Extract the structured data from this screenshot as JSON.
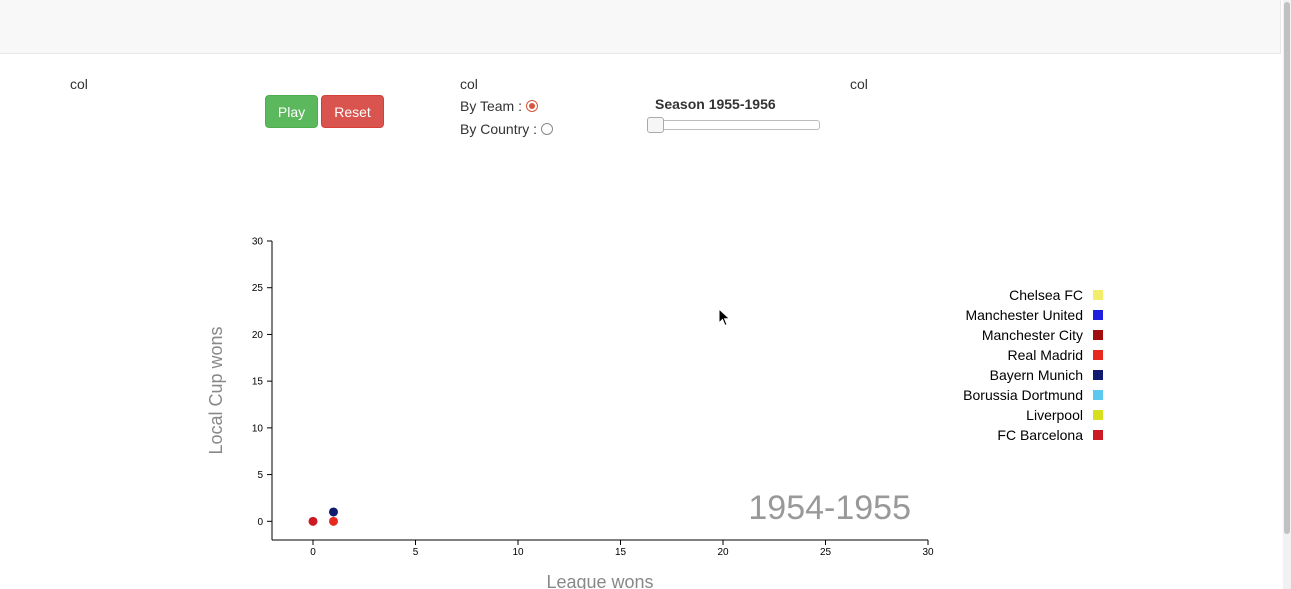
{
  "columns": {
    "col1": "col",
    "col2": "col",
    "col3": "col"
  },
  "controls": {
    "play_label": "Play",
    "reset_label": "Reset",
    "by_team_label": "By Team :",
    "by_country_label": "By Country :",
    "selected_mode": "By Team",
    "season_label": "Season 1955-1956",
    "season_slider_value": 0
  },
  "chart_data": {
    "type": "scatter",
    "xlabel": "League wons",
    "ylabel": "Local Cup wons",
    "xlim": [
      -2,
      30
    ],
    "ylim": [
      -2,
      30
    ],
    "xticks": [
      0,
      5,
      10,
      15,
      20,
      25,
      30
    ],
    "yticks": [
      0,
      5,
      10,
      15,
      20,
      25,
      30
    ],
    "annotation": "1954-1955",
    "legend": [
      {
        "name": "Chelsea FC",
        "color": "#f2ee6b"
      },
      {
        "name": "Manchester United",
        "color": "#1f1fe0"
      },
      {
        "name": "Manchester City",
        "color": "#a20c0c"
      },
      {
        "name": "Real Madrid",
        "color": "#e8291e"
      },
      {
        "name": "Bayern Munich",
        "color": "#101a6e"
      },
      {
        "name": "Borussia Dortmund",
        "color": "#5bc8f0"
      },
      {
        "name": "Liverpool",
        "color": "#d8e01e"
      },
      {
        "name": "FC Barcelona",
        "color": "#cc1a24"
      }
    ],
    "points": [
      {
        "team": "FC Barcelona",
        "x": 0,
        "y": 0,
        "color": "#cc1a24"
      },
      {
        "team": "Real Madrid",
        "x": 1,
        "y": 0,
        "color": "#e8291e"
      },
      {
        "team": "Bayern Munich",
        "x": 1,
        "y": 1,
        "color": "#101a6e"
      }
    ],
    "grid": false,
    "legend_position": "right"
  }
}
